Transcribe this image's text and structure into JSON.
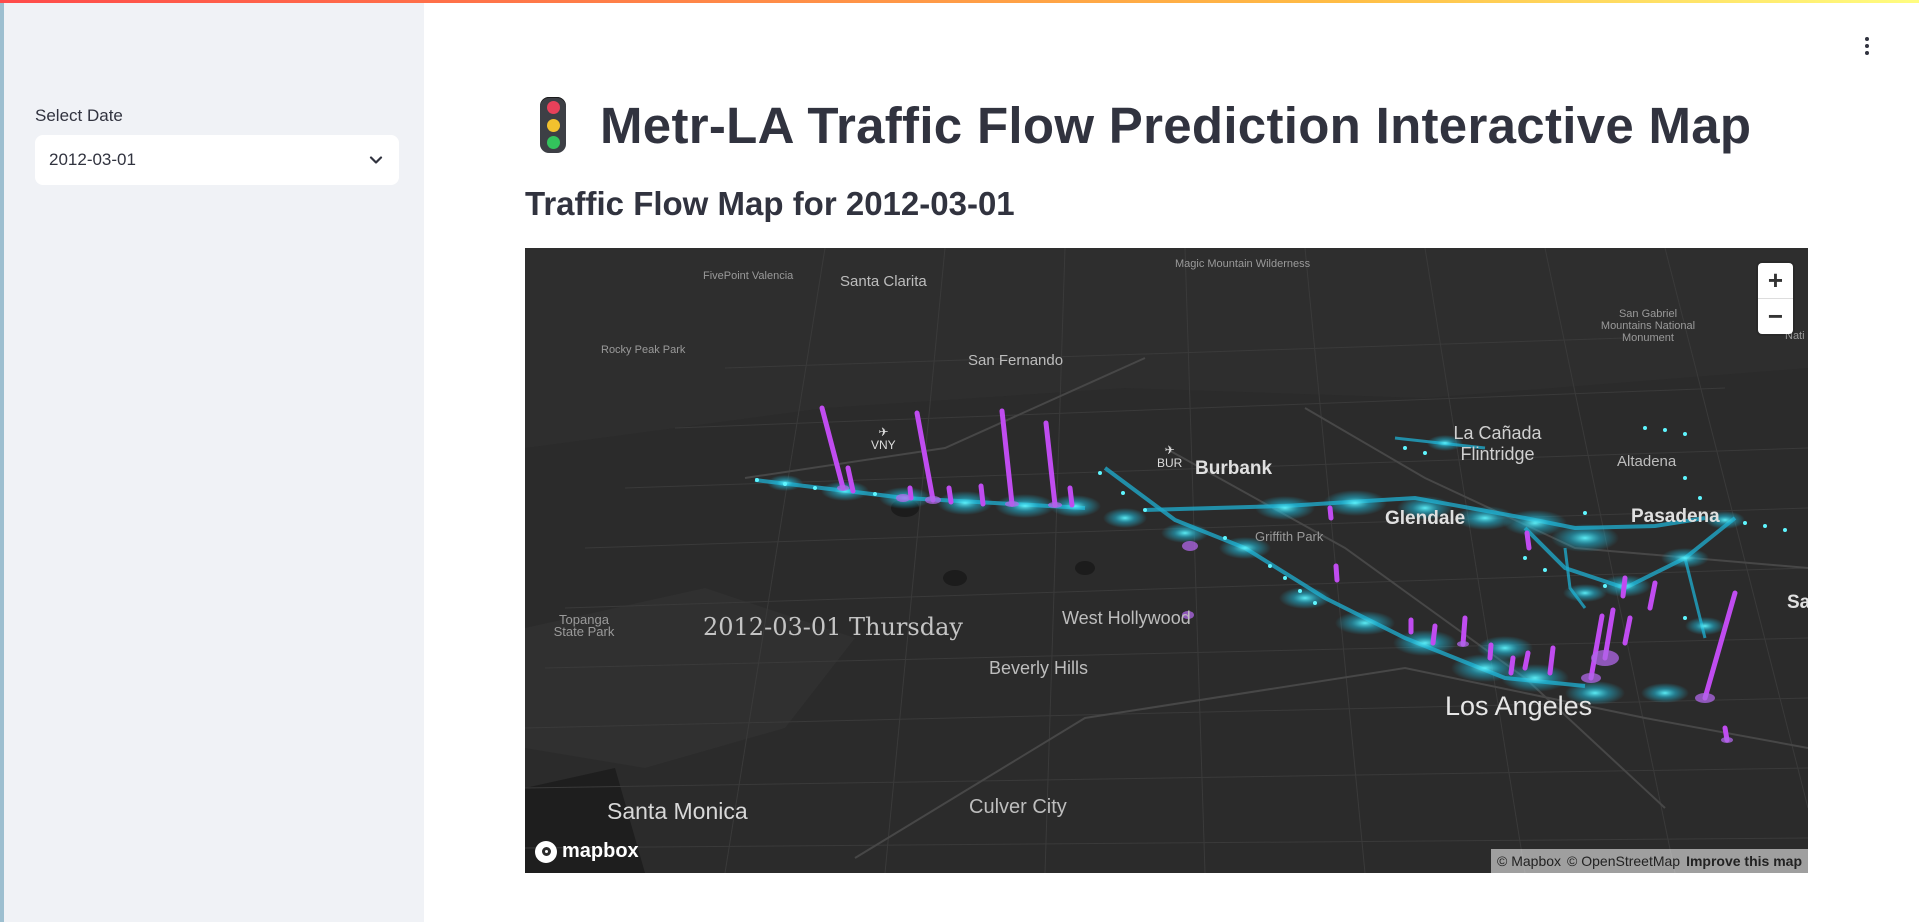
{
  "app": {
    "title": "Metr-LA Traffic Flow Prediction Interactive Map",
    "subtitle": "Traffic Flow Map for 2012-03-01",
    "title_icon": "traffic-light-icon"
  },
  "sidebar": {
    "select_label": "Select Date",
    "select_value": "2012-03-01",
    "select_icon": "chevron-down-icon"
  },
  "header": {
    "menu_icon": "kebab-menu-icon"
  },
  "map": {
    "date_overlay": "2012-03-01 Thursday",
    "zoom_in_label": "+",
    "zoom_out_label": "−",
    "logo_text": "mapbox",
    "attribution": {
      "mapbox": "© Mapbox",
      "osm": "© OpenStreetMap",
      "improve": "Improve this map"
    },
    "airports": [
      {
        "code": "VNY"
      },
      {
        "code": "BUR"
      }
    ],
    "places": [
      {
        "name": "Santa Clarita"
      },
      {
        "name": "FivePoint Valencia"
      },
      {
        "name": "Magic Mountain Wilderness"
      },
      {
        "name": "Rocky Peak Park"
      },
      {
        "name": "San Fernando"
      },
      {
        "name": "San Gabriel Mountains National Monument"
      },
      {
        "name": "La Cañada Flintridge"
      },
      {
        "name": "Altadena"
      },
      {
        "name": "Burbank"
      },
      {
        "name": "Glendale"
      },
      {
        "name": "Pasadena"
      },
      {
        "name": "Griffith Park"
      },
      {
        "name": "Topanga State Park"
      },
      {
        "name": "West Hollywood"
      },
      {
        "name": "Beverly Hills"
      },
      {
        "name": "Los Angeles"
      },
      {
        "name": "Santa Monica"
      },
      {
        "name": "Culver City"
      },
      {
        "name": "Sa"
      },
      {
        "name": "Nati"
      }
    ],
    "colors": {
      "background": "#2b2b2b",
      "road": "#3c3c3c",
      "sensor": "#2ee8f0",
      "bar": "#c04cf0"
    }
  }
}
